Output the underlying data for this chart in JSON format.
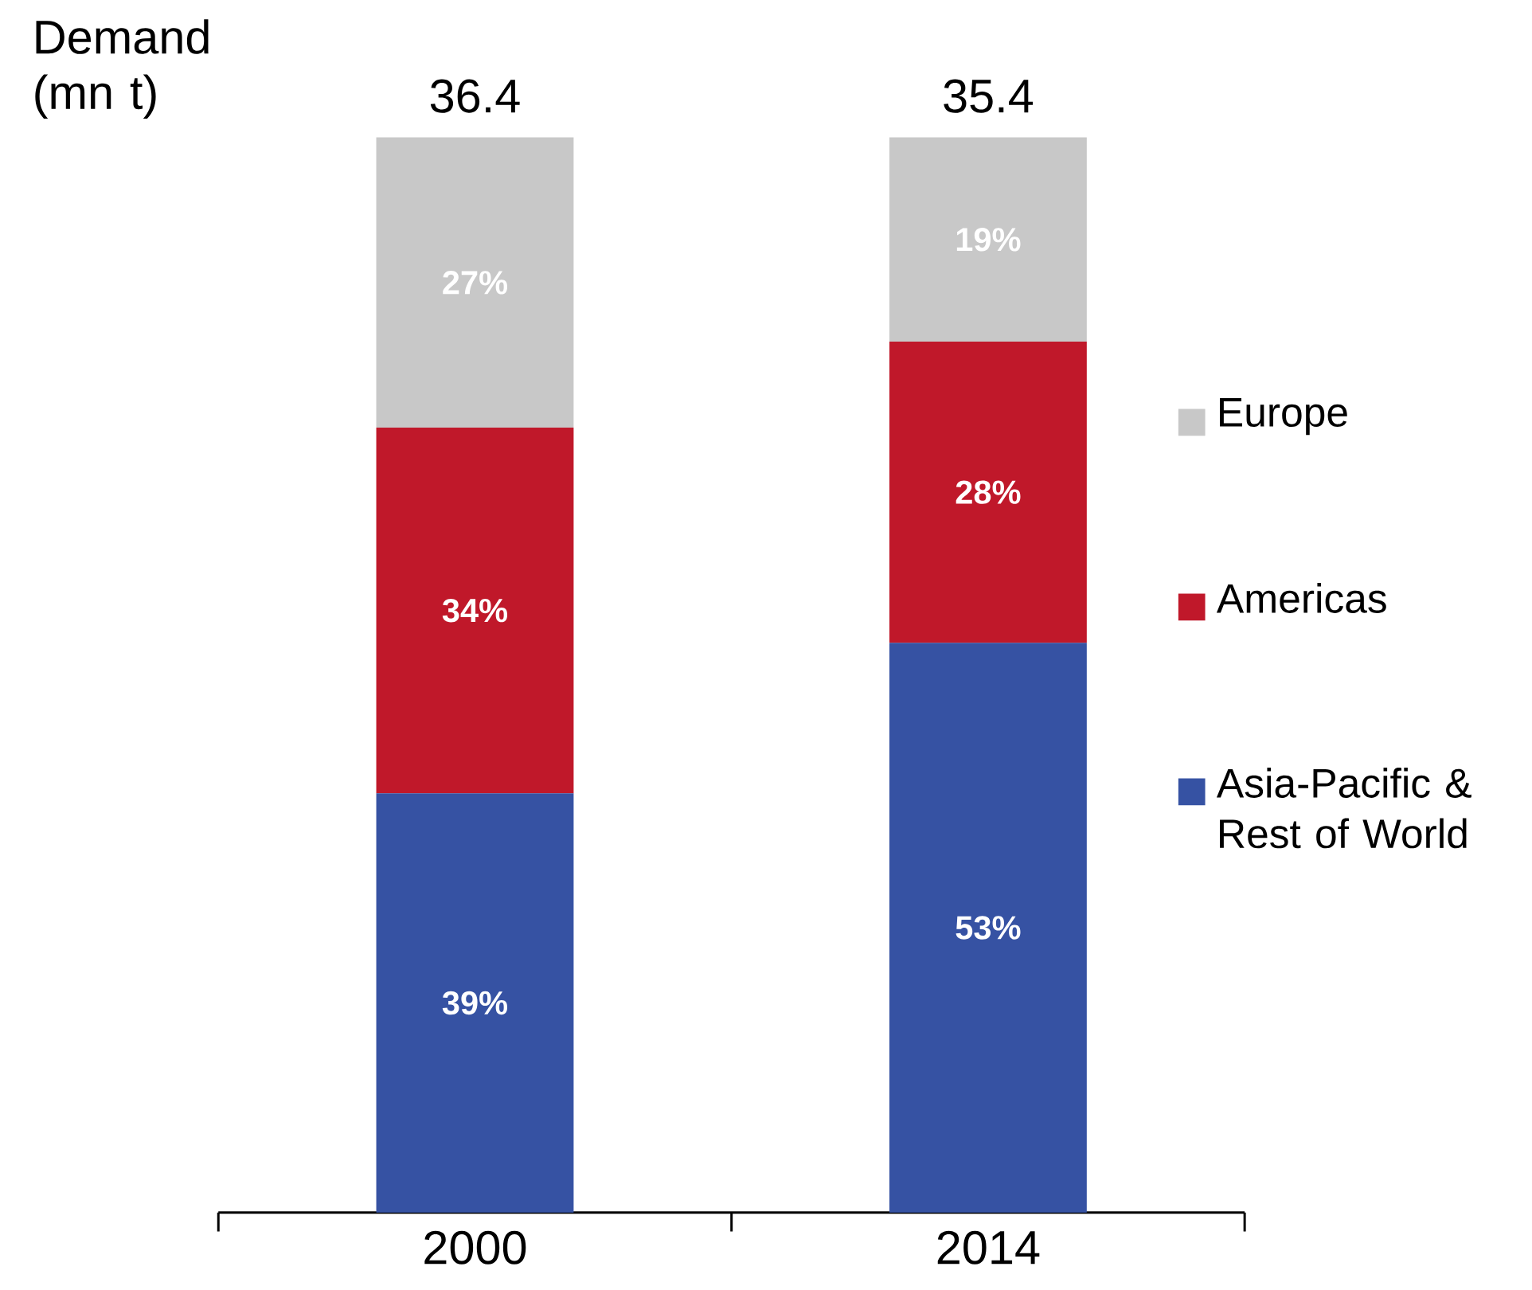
{
  "chart_data": {
    "type": "bar",
    "stacked": true,
    "ylabel": "Demand (mn t)",
    "categories": [
      "2000",
      "2014"
    ],
    "tick_labels": "x",
    "legend": "right",
    "series": [
      {
        "name": "Asia-Pacific & Rest of World",
        "color": "#3652a3",
        "values": [
          39,
          53
        ],
        "value_labels": [
          "39%",
          "53%"
        ]
      },
      {
        "name": "Americas",
        "color": "#c0182a",
        "values": [
          34,
          28
        ],
        "value_labels": [
          "34%",
          "28%"
        ]
      },
      {
        "name": "Europe",
        "color": "#c8c8c8",
        "values": [
          27,
          19
        ],
        "value_labels": [
          "27%",
          "19%"
        ]
      }
    ],
    "annotations": [
      {
        "text": "36.4",
        "x": "2000",
        "y": 100
      },
      {
        "text": "35.4",
        "x": "2014",
        "y": 100
      }
    ]
  }
}
